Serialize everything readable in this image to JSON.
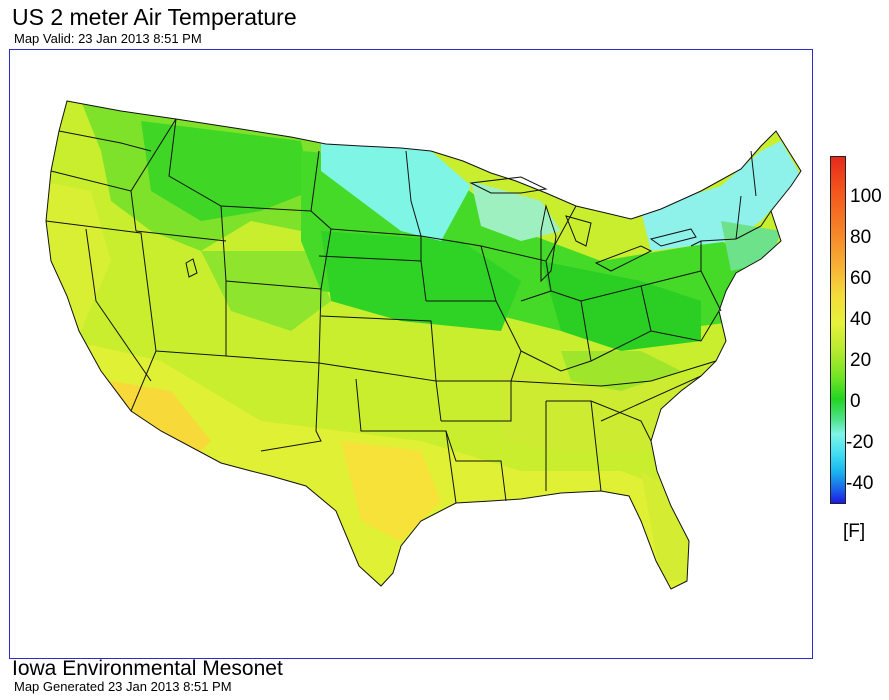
{
  "header": {
    "title": "US 2 meter Air Temperature",
    "valid_text": "Map Valid: 23 Jan 2013 8:51 PM"
  },
  "legend": {
    "ticks": [
      "100",
      "80",
      "60",
      "40",
      "20",
      "0",
      "-20",
      "-40"
    ],
    "unit": "[F]",
    "colors": {
      "hot": "#e52a1c",
      "warm": "#f4dc3b",
      "mild": "#b6ea2e",
      "cool": "#22d423",
      "cold": "#7ff5e6",
      "very_cold": "#1ab4ee",
      "frigid": "#1d1ae3"
    }
  },
  "footer": {
    "org": "Iowa Environmental Mesonet",
    "generated_text": "Map Generated 23 Jan 2013 8:51 PM"
  }
}
